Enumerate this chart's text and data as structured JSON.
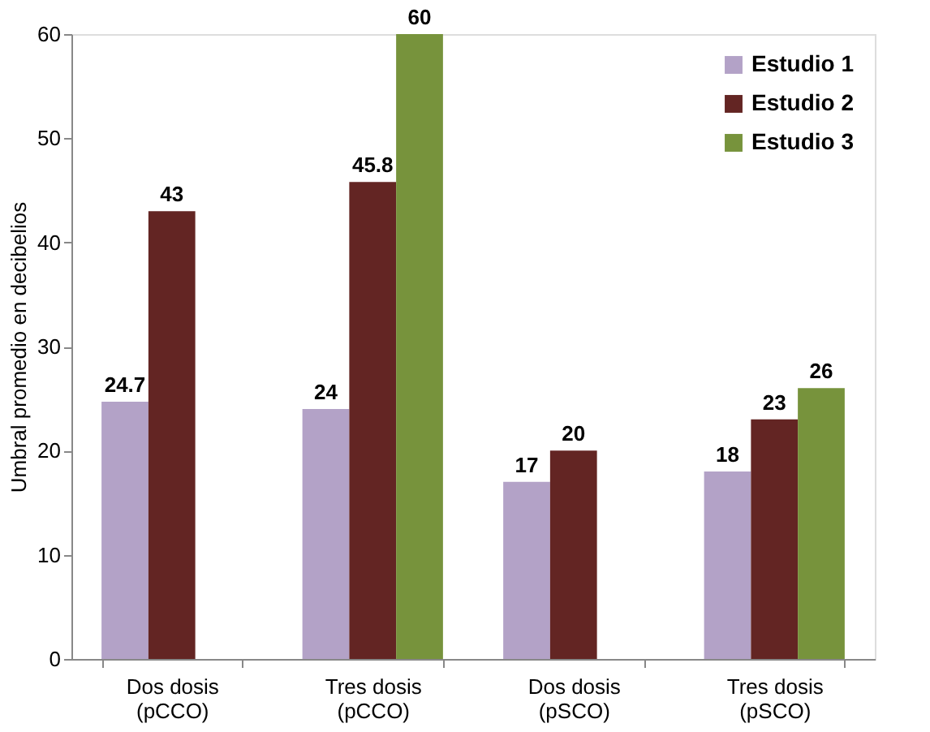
{
  "chart_data": {
    "type": "bar",
    "ylabel": "Umbral promedio en decibelios",
    "categories": [
      "Dos dosis\n(pCCO)",
      "Tres dosis\n(pCCO)",
      "Dos dosis\n(pSCO)",
      "Tres dosis\n(pSCO)"
    ],
    "series": [
      {
        "name": "Estudio 1",
        "color": "#b3a2c7",
        "values": [
          24.7,
          24,
          17,
          18
        ]
      },
      {
        "name": "Estudio 2",
        "color": "#632523",
        "values": [
          43,
          45.8,
          20,
          23
        ]
      },
      {
        "name": "Estudio 3",
        "color": "#77933c",
        "values": [
          null,
          60,
          null,
          26
        ]
      }
    ],
    "ylim": [
      0,
      60
    ],
    "yticks": [
      0,
      10,
      20,
      30,
      40,
      50,
      60
    ],
    "grid": false,
    "legend": "top right",
    "data_labels": true
  }
}
